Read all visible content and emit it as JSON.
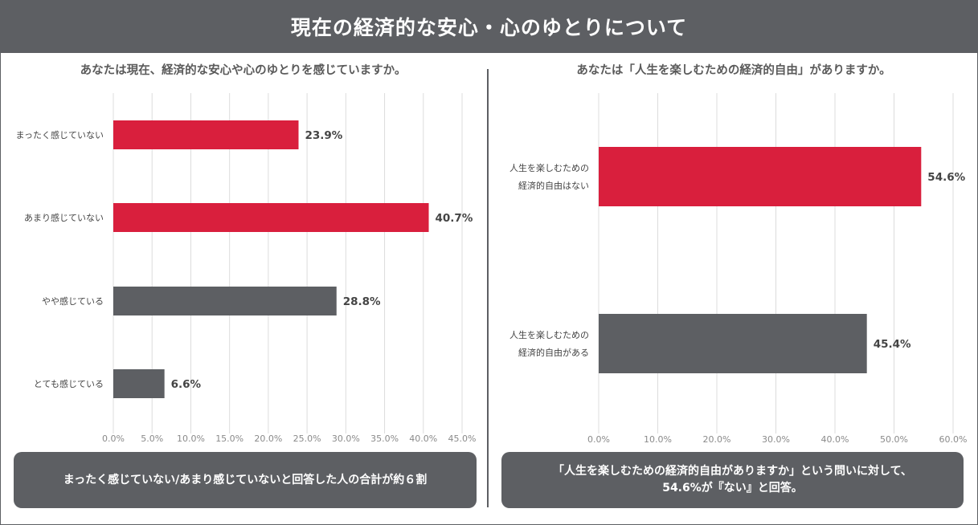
{
  "header": {
    "title": "現在の経済的な安心・心のゆとりについて"
  },
  "colors": {
    "accent": "#d91f3d",
    "neutral": "#5d5f63",
    "grid": "#dcdcdc"
  },
  "chart_data": [
    {
      "type": "bar",
      "orientation": "horizontal",
      "title": "あなたは現在、経済的な安心や心のゆとりを感じていますか。",
      "categories": [
        "まったく感じていない",
        "あまり感じていない",
        "やや感じている",
        "とても感じている"
      ],
      "values": [
        23.9,
        40.7,
        28.8,
        6.6
      ],
      "value_labels": [
        "23.9%",
        "40.7%",
        "28.8%",
        "6.6%"
      ],
      "bar_colors": [
        "#d91f3d",
        "#d91f3d",
        "#5d5f63",
        "#5d5f63"
      ],
      "xlim": [
        0,
        45
      ],
      "xticks": [
        "0.0%",
        "5.0%",
        "10.0%",
        "15.0%",
        "20.0%",
        "25.0%",
        "30.0%",
        "35.0%",
        "40.0%",
        "45.0%"
      ],
      "grid": true,
      "callout": [
        "まったく感じていない/あまり感じていないと回答した人の合計が約６割"
      ]
    },
    {
      "type": "bar",
      "orientation": "horizontal",
      "title": "あなたは「人生を楽しむための経済的自由」がありますか。",
      "categories": [
        "人生を楽しむための\n経済的自由はない",
        "人生を楽しむための\n経済的自由がある"
      ],
      "values": [
        54.6,
        45.4
      ],
      "value_labels": [
        "54.6%",
        "45.4%"
      ],
      "bar_colors": [
        "#d91f3d",
        "#5d5f63"
      ],
      "xlim": [
        0,
        60
      ],
      "xticks": [
        "0.0%",
        "10.0%",
        "20.0%",
        "30.0%",
        "40.0%",
        "50.0%",
        "60.0%"
      ],
      "grid": true,
      "callout": [
        "「人生を楽しむための経済的自由がありますか」という問いに対して、",
        "54.6%が『ない』と回答。"
      ]
    }
  ]
}
